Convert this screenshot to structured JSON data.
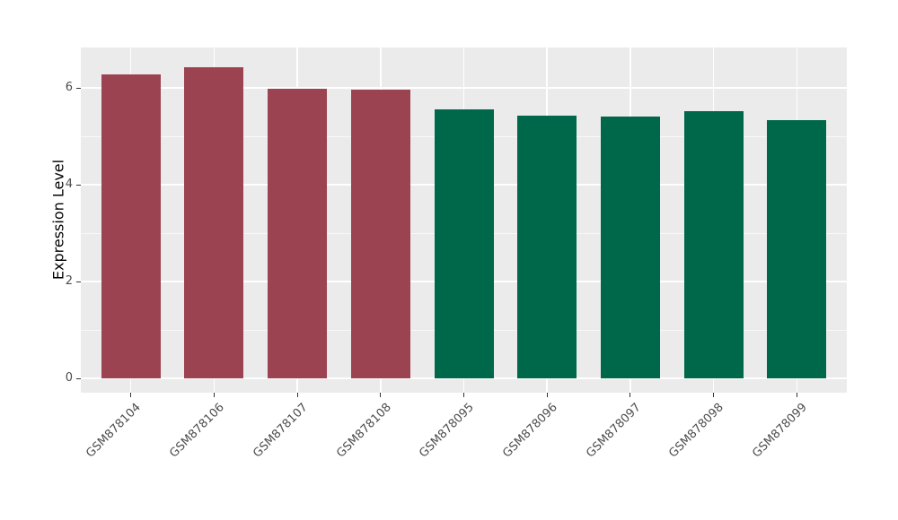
{
  "chart_data": {
    "type": "bar",
    "title": "",
    "xlabel": "",
    "ylabel": "Expression Level",
    "categories": [
      "GSM878104",
      "GSM878106",
      "GSM878107",
      "GSM878108",
      "GSM878095",
      "GSM878096",
      "GSM878097",
      "GSM878098",
      "GSM878099"
    ],
    "values": [
      6.28,
      6.43,
      5.98,
      5.96,
      5.56,
      5.43,
      5.41,
      5.51,
      5.34
    ],
    "bar_colors": [
      "#9C4352",
      "#9C4352",
      "#9C4352",
      "#9C4352",
      "#00684A",
      "#00684A",
      "#00684A",
      "#00684A",
      "#00684A"
    ],
    "yticks": [
      0,
      2,
      4,
      6
    ],
    "ytick_labels": [
      "0",
      "2",
      "4",
      "6"
    ],
    "yticks_minor": [
      1,
      3,
      5
    ],
    "ylim": [
      -0.3,
      6.83
    ],
    "grid": true,
    "legend": "none",
    "x_label_rotation_deg": 45,
    "colors": {
      "group_left": "#9C4352",
      "group_right": "#00684A",
      "panel_background": "#EBEBEB",
      "grid_major": "#FFFFFF",
      "grid_minor": "#FFFFFF",
      "axis_text": "#4D4D4D",
      "axis_title": "#000000",
      "tick_marks": "#333333",
      "figure_background": "#FFFFFF"
    }
  }
}
